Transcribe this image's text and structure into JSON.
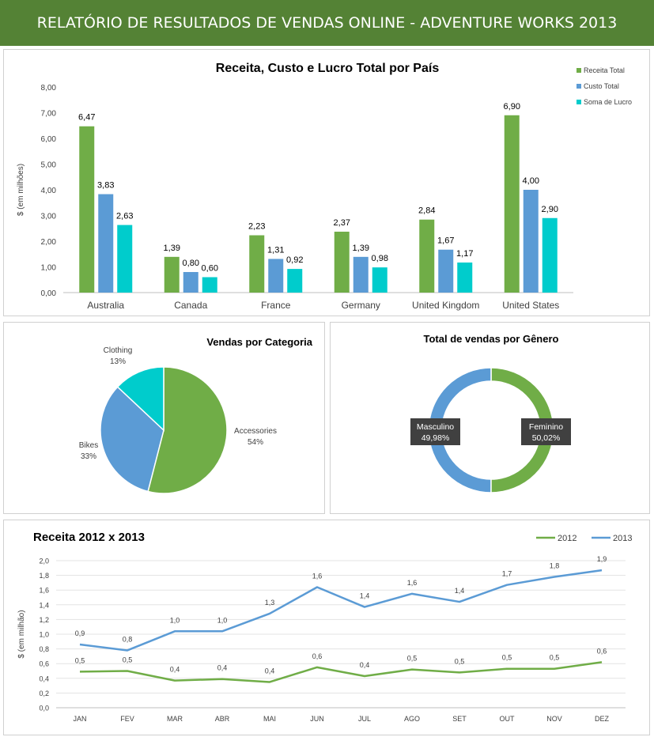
{
  "header": {
    "title": "RELATÓRIO DE RESULTADOS DE VENDAS ONLINE - ADVENTURE WORKS 2013"
  },
  "colors": {
    "green": "#70AD47",
    "blue": "#5B9BD5",
    "teal": "#00CCCC",
    "banner": "#548235"
  },
  "chart_data": [
    {
      "type": "bar",
      "title": "Receita, Custo e Lucro Total por País",
      "ylabel": "$ (em milhões)",
      "ylim": [
        0,
        8
      ],
      "yticks": [
        "0,00",
        "1,00",
        "2,00",
        "3,00",
        "4,00",
        "5,00",
        "6,00",
        "7,00",
        "8,00"
      ],
      "legend_position": "top-right",
      "categories": [
        "Australia",
        "Canada",
        "France",
        "Germany",
        "United Kingdom",
        "United States"
      ],
      "series": [
        {
          "name": "Receita Total",
          "color": "#70AD47",
          "values": [
            6.47,
            1.39,
            2.23,
            2.37,
            2.84,
            6.9
          ],
          "labels": [
            "6,47",
            "1,39",
            "2,23",
            "2,37",
            "2,84",
            "6,90"
          ]
        },
        {
          "name": "Custo Total",
          "color": "#5B9BD5",
          "values": [
            3.83,
            0.8,
            1.31,
            1.39,
            1.67,
            4.0
          ],
          "labels": [
            "3,83",
            "0,80",
            "1,31",
            "1,39",
            "1,67",
            "4,00"
          ]
        },
        {
          "name": "Soma de Lucro",
          "color": "#00CCCC",
          "values": [
            2.63,
            0.6,
            0.92,
            0.98,
            1.17,
            2.9
          ],
          "labels": [
            "2,63",
            "0,60",
            "0,92",
            "0,98",
            "1,17",
            "2,90"
          ]
        }
      ]
    },
    {
      "type": "pie",
      "title": "Vendas por Categoria",
      "slices": [
        {
          "name": "Accessories",
          "value": 54,
          "label": "54%",
          "color": "#70AD47"
        },
        {
          "name": "Bikes",
          "value": 33,
          "label": "33%",
          "color": "#5B9BD5"
        },
        {
          "name": "Clothing",
          "value": 13,
          "label": "13%",
          "color": "#00CCCC"
        }
      ]
    },
    {
      "type": "pie",
      "subtype": "donut",
      "title": "Total de vendas por Gênero",
      "slices": [
        {
          "name": "Feminino",
          "value": 50.02,
          "label": "50,02%",
          "color": "#70AD47"
        },
        {
          "name": "Masculino",
          "value": 49.98,
          "label": "49,98%",
          "color": "#5B9BD5"
        }
      ]
    },
    {
      "type": "line",
      "title": "Receita 2012 x 2013",
      "ylabel": "$ (em milhão)",
      "ylim": [
        0,
        2
      ],
      "yticks": [
        "0,0",
        "0,2",
        "0,4",
        "0,6",
        "0,8",
        "1,0",
        "1,2",
        "1,4",
        "1,6",
        "1,8",
        "2,0"
      ],
      "legend_position": "top-right",
      "categories": [
        "JAN",
        "FEV",
        "MAR",
        "ABR",
        "MAI",
        "JUN",
        "JUL",
        "AGO",
        "SET",
        "OUT",
        "NOV",
        "DEZ"
      ],
      "series": [
        {
          "name": "2012",
          "color": "#70AD47",
          "values": [
            0.49,
            0.5,
            0.37,
            0.39,
            0.35,
            0.55,
            0.43,
            0.52,
            0.48,
            0.53,
            0.53,
            0.62
          ],
          "labels": [
            "0,5",
            "0,5",
            "0,4",
            "0,4",
            "0,4",
            "0,6",
            "0,4",
            "0,5",
            "0,5",
            "0,5",
            "0,5",
            "0,6"
          ]
        },
        {
          "name": "2013",
          "color": "#5B9BD5",
          "values": [
            0.86,
            0.78,
            1.04,
            1.04,
            1.28,
            1.64,
            1.37,
            1.55,
            1.44,
            1.67,
            1.78,
            1.87
          ],
          "labels": [
            "0,9",
            "0,8",
            "1,0",
            "1,0",
            "1,3",
            "1,6",
            "1,4",
            "1,6",
            "1,4",
            "1,7",
            "1,8",
            "1,9"
          ]
        }
      ]
    }
  ]
}
